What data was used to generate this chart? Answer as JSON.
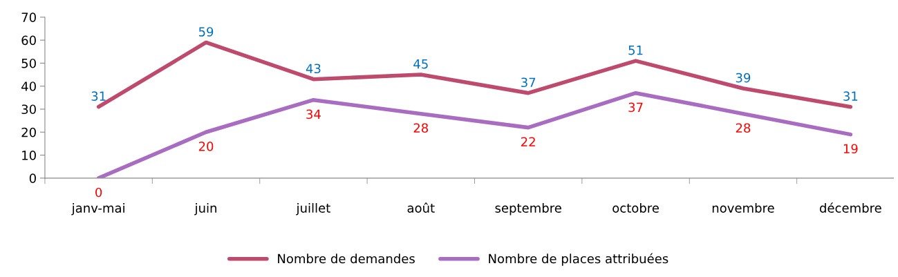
{
  "chart_data": {
    "type": "line",
    "categories": [
      "janv-mai",
      "juin",
      "juillet",
      "août",
      "septembre",
      "octobre",
      "novembre",
      "décembre"
    ],
    "series": [
      {
        "name": "Nombre de demandes",
        "color": "#be4b6e",
        "values": [
          31,
          59,
          43,
          45,
          37,
          51,
          39,
          31
        ]
      },
      {
        "name": "Nombre de places attribuées",
        "color": "#a86cc1",
        "values": [
          0,
          20,
          34,
          28,
          22,
          37,
          28,
          19
        ]
      }
    ],
    "ylim": [
      0,
      70
    ],
    "yticks": [
      0,
      10,
      20,
      30,
      40,
      50,
      60,
      70
    ],
    "data_labels": true,
    "grid": false,
    "legend": "bottom",
    "marker": "none",
    "line_style": "solid"
  }
}
